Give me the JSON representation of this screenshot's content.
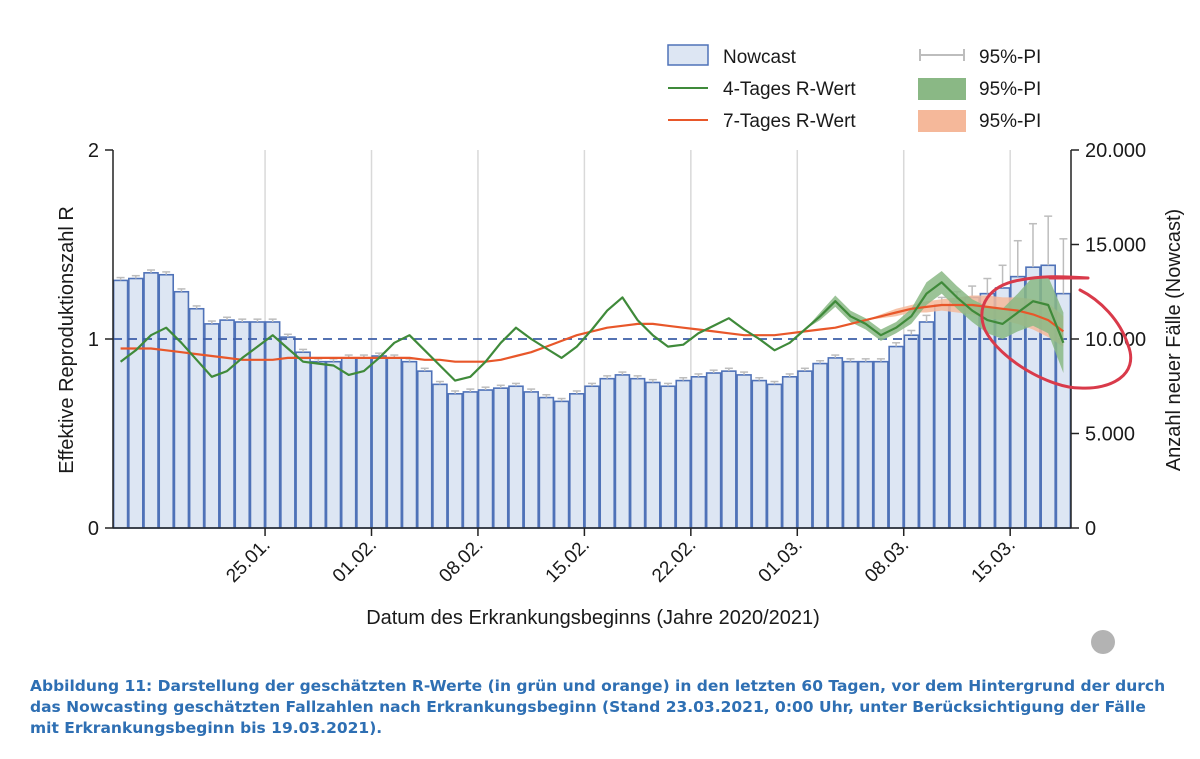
{
  "chart_data": {
    "type": "bar",
    "title": "",
    "xlabel": "Datum des Erkrankungsbeginns (Jahre 2020/2021)",
    "ylabel_left": "Effektive Reproduktionszahl R",
    "ylabel_right": "Anzahl neuer Fälle (Nowcast)",
    "ylim_left": [
      0,
      2
    ],
    "ylim_right": [
      0,
      20000
    ],
    "left_ticks": [
      "0",
      "1",
      "2"
    ],
    "right_ticks": [
      "0",
      "5.000",
      "10.000",
      "15.000",
      "20.000"
    ],
    "x_ticks": [
      {
        "label": "25.01.",
        "index": 10
      },
      {
        "label": "01.02.",
        "index": 17
      },
      {
        "label": "08.02.",
        "index": 24
      },
      {
        "label": "15.02.",
        "index": 31
      },
      {
        "label": "22.02.",
        "index": 38
      },
      {
        "label": "01.03.",
        "index": 45
      },
      {
        "label": "08.03.",
        "index": 52
      },
      {
        "label": "15.03.",
        "index": 59
      }
    ],
    "reference_line": {
      "value": 1,
      "style": "dashed"
    },
    "nowcast": [
      13100,
      13200,
      13500,
      13400,
      12500,
      11600,
      10800,
      11000,
      10900,
      10900,
      10900,
      10100,
      9300,
      8800,
      8800,
      9000,
      9000,
      9100,
      9000,
      8800,
      8300,
      7600,
      7100,
      7200,
      7300,
      7400,
      7500,
      7200,
      6900,
      6700,
      7100,
      7500,
      7900,
      8100,
      7900,
      7700,
      7500,
      7800,
      8000,
      8200,
      8300,
      8100,
      7800,
      7600,
      8000,
      8300,
      8700,
      9000,
      8800,
      8800,
      8800,
      9600,
      10200,
      10900,
      11800,
      12000,
      12200,
      12400,
      12700,
      13300,
      13800,
      13900,
      12400
    ],
    "pi_upper": [
      13250,
      13350,
      13650,
      13550,
      12650,
      11750,
      10950,
      11150,
      11050,
      11050,
      11050,
      10250,
      9450,
      8950,
      8950,
      9150,
      9150,
      9250,
      9150,
      8950,
      8450,
      7750,
      7250,
      7350,
      7450,
      7550,
      7650,
      7350,
      7050,
      6850,
      7250,
      7650,
      8050,
      8250,
      8050,
      7850,
      7650,
      7950,
      8150,
      8350,
      8450,
      8250,
      7950,
      7750,
      8150,
      8450,
      8850,
      9150,
      8950,
      8950,
      8950,
      9800,
      10450,
      11250,
      12200,
      12500,
      12800,
      13200,
      13900,
      15200,
      16100,
      16500,
      15300
    ],
    "r4": [
      0.88,
      0.94,
      1.02,
      1.06,
      0.98,
      0.89,
      0.8,
      0.83,
      0.9,
      0.96,
      1.02,
      0.95,
      0.88,
      0.87,
      0.86,
      0.81,
      0.83,
      0.9,
      0.98,
      1.02,
      0.94,
      0.86,
      0.78,
      0.8,
      0.88,
      0.98,
      1.06,
      1.0,
      0.95,
      0.9,
      0.96,
      1.05,
      1.15,
      1.22,
      1.1,
      1.02,
      0.96,
      0.97,
      1.03,
      1.07,
      1.11,
      1.05,
      1.0,
      0.94,
      0.98,
      1.05,
      1.12,
      1.2,
      1.12,
      1.08,
      1.02,
      1.06,
      1.12,
      1.24,
      1.3,
      1.22,
      1.15,
      1.1,
      1.08,
      1.14,
      1.2,
      1.18,
      0.98
    ],
    "r4_lower": [
      0.88,
      0.94,
      1.02,
      1.06,
      0.98,
      0.89,
      0.8,
      0.83,
      0.9,
      0.96,
      1.02,
      0.95,
      0.88,
      0.87,
      0.86,
      0.81,
      0.83,
      0.9,
      0.98,
      1.02,
      0.94,
      0.86,
      0.78,
      0.8,
      0.88,
      0.98,
      1.06,
      1.0,
      0.95,
      0.9,
      0.96,
      1.05,
      1.15,
      1.22,
      1.1,
      1.02,
      0.96,
      0.97,
      1.03,
      1.07,
      1.11,
      1.05,
      1.0,
      0.94,
      0.98,
      1.05,
      1.1,
      1.17,
      1.09,
      1.05,
      0.99,
      1.03,
      1.08,
      1.18,
      1.24,
      1.16,
      1.09,
      1.03,
      1.0,
      1.04,
      1.07,
      1.03,
      0.82
    ],
    "r4_upper": [
      0.88,
      0.94,
      1.02,
      1.06,
      0.98,
      0.89,
      0.8,
      0.83,
      0.9,
      0.96,
      1.02,
      0.95,
      0.88,
      0.87,
      0.86,
      0.81,
      0.83,
      0.9,
      0.98,
      1.02,
      0.94,
      0.86,
      0.78,
      0.8,
      0.88,
      0.98,
      1.06,
      1.0,
      0.95,
      0.9,
      0.96,
      1.05,
      1.15,
      1.22,
      1.1,
      1.02,
      0.96,
      0.97,
      1.03,
      1.07,
      1.11,
      1.05,
      1.0,
      0.94,
      0.98,
      1.05,
      1.14,
      1.23,
      1.15,
      1.11,
      1.05,
      1.09,
      1.16,
      1.3,
      1.36,
      1.28,
      1.21,
      1.17,
      1.16,
      1.24,
      1.33,
      1.33,
      1.14
    ],
    "r7": [
      0.95,
      0.95,
      0.95,
      0.94,
      0.93,
      0.92,
      0.91,
      0.9,
      0.89,
      0.89,
      0.89,
      0.9,
      0.9,
      0.9,
      0.9,
      0.9,
      0.9,
      0.9,
      0.9,
      0.9,
      0.89,
      0.89,
      0.88,
      0.88,
      0.88,
      0.89,
      0.91,
      0.93,
      0.96,
      0.99,
      1.02,
      1.04,
      1.06,
      1.07,
      1.08,
      1.08,
      1.07,
      1.06,
      1.05,
      1.04,
      1.03,
      1.02,
      1.02,
      1.02,
      1.03,
      1.04,
      1.05,
      1.06,
      1.08,
      1.1,
      1.12,
      1.14,
      1.16,
      1.17,
      1.18,
      1.18,
      1.18,
      1.17,
      1.16,
      1.15,
      1.13,
      1.1,
      1.04
    ],
    "r7_lower": [
      0.95,
      0.95,
      0.95,
      0.94,
      0.93,
      0.92,
      0.91,
      0.9,
      0.89,
      0.89,
      0.89,
      0.9,
      0.9,
      0.9,
      0.9,
      0.9,
      0.9,
      0.9,
      0.9,
      0.9,
      0.89,
      0.89,
      0.88,
      0.88,
      0.88,
      0.89,
      0.91,
      0.93,
      0.96,
      0.99,
      1.02,
      1.04,
      1.06,
      1.07,
      1.08,
      1.08,
      1.07,
      1.06,
      1.05,
      1.04,
      1.03,
      1.02,
      1.02,
      1.02,
      1.03,
      1.04,
      1.05,
      1.06,
      1.08,
      1.1,
      1.11,
      1.12,
      1.14,
      1.14,
      1.15,
      1.14,
      1.13,
      1.11,
      1.1,
      1.08,
      1.05,
      1.01,
      0.96
    ],
    "r7_upper": [
      0.95,
      0.95,
      0.95,
      0.94,
      0.93,
      0.92,
      0.91,
      0.9,
      0.89,
      0.89,
      0.89,
      0.9,
      0.9,
      0.9,
      0.9,
      0.9,
      0.9,
      0.9,
      0.9,
      0.9,
      0.89,
      0.89,
      0.88,
      0.88,
      0.88,
      0.89,
      0.91,
      0.93,
      0.96,
      0.99,
      1.02,
      1.04,
      1.06,
      1.07,
      1.08,
      1.08,
      1.07,
      1.06,
      1.05,
      1.04,
      1.03,
      1.02,
      1.02,
      1.02,
      1.03,
      1.04,
      1.05,
      1.06,
      1.08,
      1.1,
      1.13,
      1.16,
      1.18,
      1.2,
      1.21,
      1.22,
      1.23,
      1.23,
      1.22,
      1.22,
      1.21,
      1.19,
      1.12
    ],
    "legend": {
      "position": "top-right",
      "entries": [
        {
          "label": "Nowcast",
          "kind": "bar"
        },
        {
          "label": "4-Tages R-Wert",
          "kind": "line-green"
        },
        {
          "label": "7-Tages R-Wert",
          "kind": "line-orange"
        },
        {
          "label": "95%-PI",
          "kind": "errorbar"
        },
        {
          "label": "95%-PI",
          "kind": "band-green"
        },
        {
          "label": "95%-PI",
          "kind": "band-orange"
        }
      ]
    },
    "colors": {
      "bar_fill": "#dde6f3",
      "bar_edge": "#4f72b8",
      "green": "#3f8a3a",
      "green_band": "#8ab885",
      "orange": "#e8572a",
      "orange_band": "#f5b89a",
      "ref_line": "#3d5ea8",
      "errorbar": "#bdbdbd",
      "annotation": "#d93a4a"
    }
  },
  "caption": "Abbildung 11: Darstellung der geschätzten R-Werte (in grün und orange) in den letzten 60 Tagen, vor dem Hintergrund der durch das Nowcasting geschätzten Fallzahlen nach Erkrankungsbeginn (Stand 23.03.2021, 0:00 Uhr, unter Berücksichtigung der Fälle mit Erkrankungsbeginn bis 19.03.2021)."
}
